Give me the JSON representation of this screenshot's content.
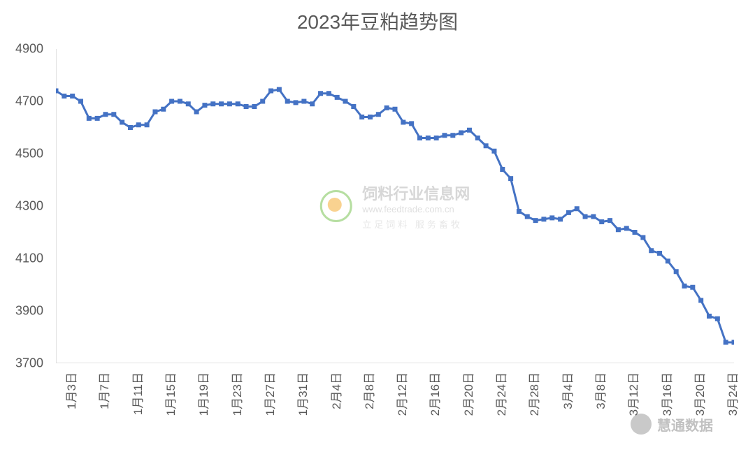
{
  "title": "2023年豆粕趋势图",
  "watermark": {
    "main": "饲料行业信息网",
    "url": "www.feedtrade.com.cn",
    "sub": "立足饲料 服务畜牧"
  },
  "bottom_watermark": "慧通数据",
  "chart": {
    "type": "line",
    "background_color": "#ffffff",
    "title_fontsize": 28,
    "title_color": "#595959",
    "label_fontsize": 18,
    "label_color": "#595959",
    "ylim": [
      3700,
      4900
    ],
    "ytick_step": 200,
    "yticks": [
      3700,
      3900,
      4100,
      4300,
      4500,
      4700,
      4900
    ],
    "axis_color": "#d9d9d9",
    "tick_color": "#d9d9d9",
    "line_color": "#4472c4",
    "marker_color": "#4472c4",
    "marker_style": "square",
    "marker_size": 7,
    "line_width": 3,
    "grid": false,
    "x_tick_labels": [
      "1月3日",
      "1月7日",
      "1月11日",
      "1月15日",
      "1月19日",
      "1月23日",
      "1月27日",
      "1月31日",
      "2月4日",
      "2月8日",
      "2月12日",
      "2月16日",
      "2月20日",
      "2月24日",
      "2月28日",
      "3月4日",
      "3月8日",
      "3月12日",
      "3月16日",
      "3月20日",
      "3月24日"
    ],
    "x_label_rotation": -90,
    "series": {
      "values": [
        4740,
        4720,
        4720,
        4700,
        4635,
        4635,
        4650,
        4650,
        4620,
        4600,
        4610,
        4610,
        4660,
        4670,
        4700,
        4700,
        4690,
        4660,
        4685,
        4690,
        4690,
        4690,
        4690,
        4680,
        4680,
        4700,
        4740,
        4745,
        4700,
        4695,
        4700,
        4690,
        4730,
        4730,
        4715,
        4700,
        4680,
        4640,
        4640,
        4650,
        4675,
        4670,
        4620,
        4615,
        4560,
        4560,
        4560,
        4570,
        4570,
        4580,
        4590,
        4560,
        4530,
        4510,
        4440,
        4405,
        4280,
        4260,
        4245,
        4250,
        4255,
        4250,
        4275,
        4290,
        4260,
        4260,
        4240,
        4245,
        4210,
        4215,
        4200,
        4180,
        4130,
        4120,
        4090,
        4050,
        3995,
        3990,
        3940,
        3880,
        3870,
        3780,
        3780
      ]
    }
  }
}
